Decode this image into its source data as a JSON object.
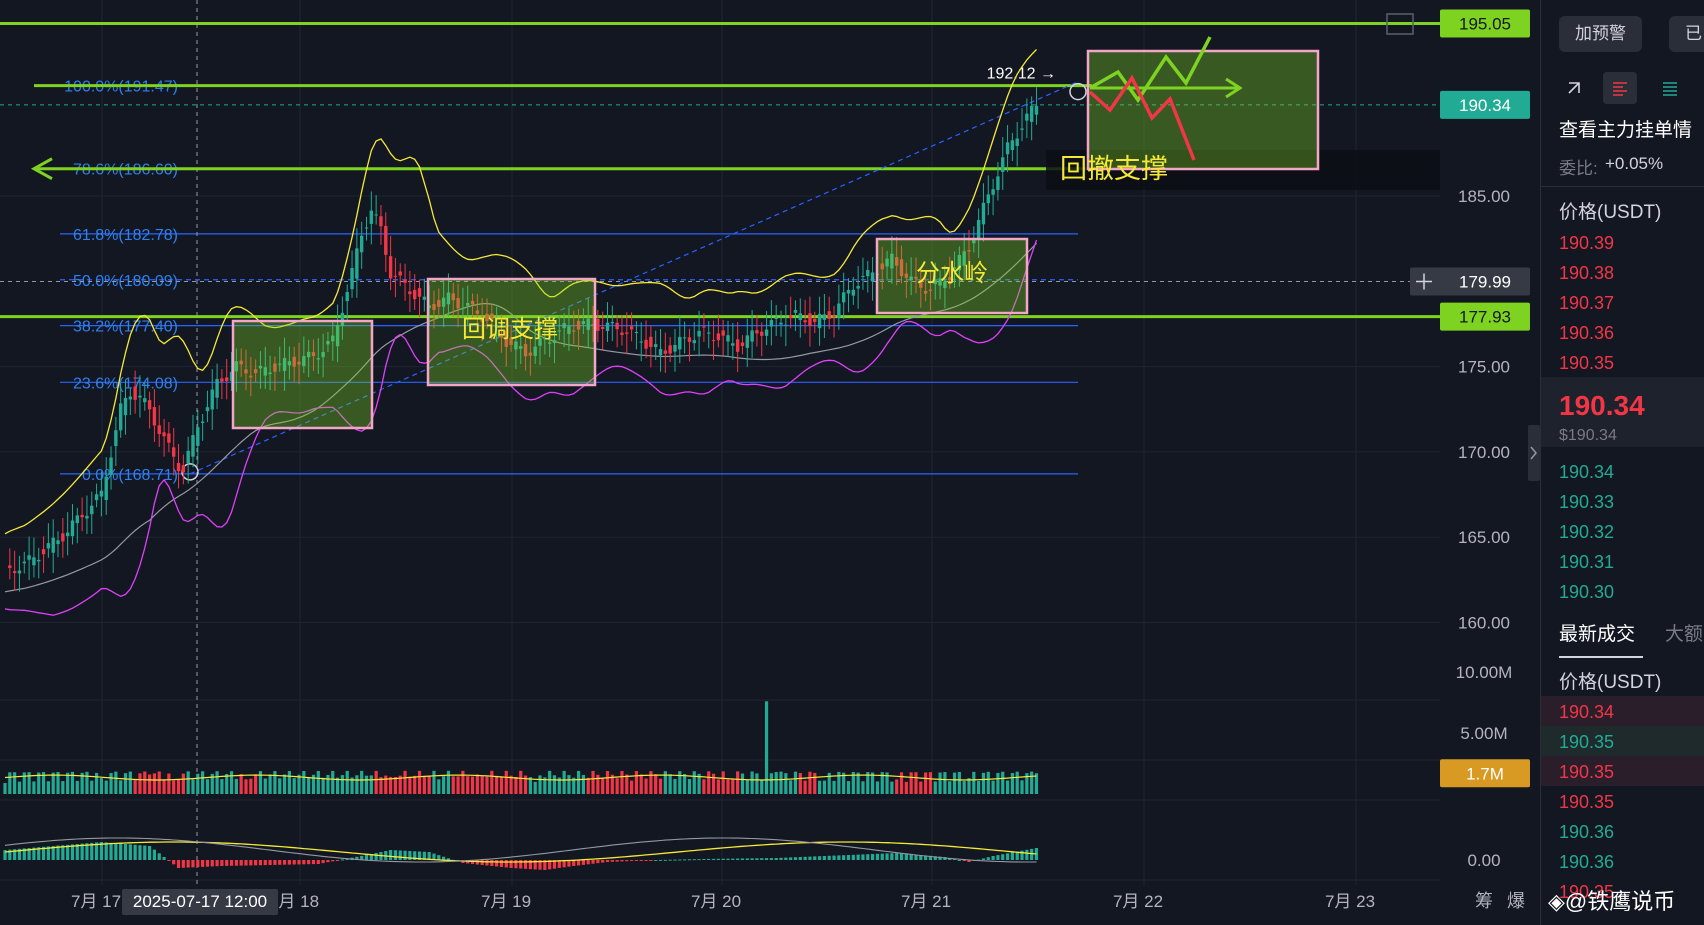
{
  "chart_data": {
    "type": "candlestick",
    "symbol_quote": "USDT",
    "price_axis": {
      "min": 160,
      "max": 195,
      "ticks": [
        "185.00",
        "175.00",
        "170.00",
        "165.00",
        "160.00"
      ],
      "tick_values": [
        185,
        175,
        170,
        165,
        160
      ]
    },
    "x_ticks": [
      "7月 17",
      "7月 18",
      "7月 19",
      "7月 20",
      "7月 21",
      "7月 22",
      "7月 23"
    ],
    "crosshair_time": "2025-07-17 12:00",
    "crosshair_price": "179.99",
    "price_badges": [
      {
        "label": "195.05",
        "value": 195.05,
        "color": "#7ed321",
        "text_color": "#131722"
      },
      {
        "label": "190.34",
        "value": 190.34,
        "color": "#22ab94",
        "text_color": "#ffffff"
      },
      {
        "label": "177.93",
        "value": 177.93,
        "color": "#7ed321",
        "text_color": "#131722"
      }
    ],
    "fib_levels": [
      {
        "label": "100.0%(191.47)",
        "value": 191.47
      },
      {
        "label": "78.6%(186.60)",
        "value": 186.6
      },
      {
        "label": "61.8%(182.78)",
        "value": 182.78
      },
      {
        "label": "50.0%(180.09)",
        "value": 180.09
      },
      {
        "label": "38.2%(177.40)",
        "value": 177.4
      },
      {
        "label": "23.6%(174.08)",
        "value": 174.08
      },
      {
        "label": "0.0%(168.71)",
        "value": 168.71
      }
    ],
    "high_marker": "192.12",
    "annotations": [
      "回调支撑",
      "分水岭",
      "回撤支撑"
    ],
    "volume_panel": {
      "ticks": [
        "10.00M",
        "5.00M"
      ],
      "tick_values": [
        10,
        5
      ],
      "current_label": "1.7M",
      "current_value": 1.7
    },
    "macd_panel": {
      "ticks": [
        "0.00"
      ]
    },
    "close_path": [
      [
        0,
        163.0
      ],
      [
        4,
        163.4
      ],
      [
        8,
        164.2
      ],
      [
        12,
        165.1
      ],
      [
        16,
        166.3
      ],
      [
        20,
        167.5
      ],
      [
        22,
        170.0
      ],
      [
        24,
        172.5
      ],
      [
        26,
        173.5
      ],
      [
        28,
        173.2
      ],
      [
        30,
        172.4
      ],
      [
        32,
        171.3
      ],
      [
        34,
        170.2
      ],
      [
        36,
        169.2
      ],
      [
        37,
        169.0
      ],
      [
        40,
        171.5
      ],
      [
        44,
        174.0
      ],
      [
        48,
        175.0
      ],
      [
        52,
        174.6
      ],
      [
        56,
        175.0
      ],
      [
        60,
        175.3
      ],
      [
        64,
        175.6
      ],
      [
        68,
        176.5
      ],
      [
        70,
        178.5
      ],
      [
        72,
        180.5
      ],
      [
        74,
        182.8
      ],
      [
        76,
        184.2
      ],
      [
        78,
        183.0
      ],
      [
        80,
        180.5
      ],
      [
        84,
        179.5
      ],
      [
        88,
        178.5
      ],
      [
        92,
        179.0
      ],
      [
        96,
        178.5
      ],
      [
        100,
        177.8
      ],
      [
        104,
        176.5
      ],
      [
        108,
        175.8
      ],
      [
        112,
        176.5
      ],
      [
        116,
        177.2
      ],
      [
        120,
        177.5
      ],
      [
        124,
        177.4
      ],
      [
        128,
        177.2
      ],
      [
        132,
        176.6
      ],
      [
        136,
        175.8
      ],
      [
        140,
        176.4
      ],
      [
        144,
        177.0
      ],
      [
        148,
        176.8
      ],
      [
        152,
        176.2
      ],
      [
        156,
        177.0
      ],
      [
        160,
        177.6
      ],
      [
        164,
        178.0
      ],
      [
        168,
        177.6
      ],
      [
        172,
        178.2
      ],
      [
        176,
        179.8
      ],
      [
        180,
        180.5
      ],
      [
        184,
        181.3
      ],
      [
        188,
        180.0
      ],
      [
        192,
        179.5
      ],
      [
        196,
        180.4
      ],
      [
        200,
        182.0
      ],
      [
        204,
        185.0
      ],
      [
        208,
        187.8
      ],
      [
        212,
        189.6
      ],
      [
        214,
        190.34
      ]
    ],
    "volume_bars": [
      [
        0,
        0.9
      ],
      [
        20,
        1.3
      ],
      [
        30,
        1.6
      ],
      [
        35,
        1.1
      ],
      [
        50,
        1.2
      ],
      [
        75,
        1.5
      ],
      [
        80,
        1.4
      ],
      [
        90,
        1.2
      ],
      [
        98,
        1.6
      ],
      [
        110,
        1.0
      ],
      [
        130,
        1.1
      ],
      [
        150,
        1.2
      ],
      [
        158,
        7.6
      ],
      [
        160,
        1.8
      ],
      [
        170,
        1.1
      ],
      [
        185,
        1.2
      ],
      [
        200,
        1.3
      ],
      [
        214,
        1.7
      ]
    ],
    "macd_bars": [
      [
        0,
        1.0
      ],
      [
        10,
        1.4
      ],
      [
        20,
        1.8
      ],
      [
        30,
        1.4
      ],
      [
        36,
        -0.8
      ],
      [
        45,
        -0.6
      ],
      [
        55,
        -0.5
      ],
      [
        65,
        -0.4
      ],
      [
        75,
        0.5
      ],
      [
        80,
        1.0
      ],
      [
        88,
        0.8
      ],
      [
        95,
        -0.3
      ],
      [
        105,
        -0.8
      ],
      [
        112,
        -1.0
      ],
      [
        118,
        -0.6
      ],
      [
        125,
        -0.2
      ],
      [
        135,
        0.0
      ],
      [
        145,
        0.1
      ],
      [
        160,
        0.2
      ],
      [
        175,
        0.5
      ],
      [
        185,
        0.7
      ],
      [
        195,
        0.3
      ],
      [
        200,
        -0.2
      ],
      [
        205,
        0.4
      ],
      [
        214,
        1.2
      ]
    ]
  },
  "sidebar": {
    "buttons": [
      "加预警",
      "已"
    ],
    "orderbook_title": "查看主力挂单情",
    "ratio_label": "委比:",
    "ratio_value": "+0.05%",
    "price_header": "价格(USDT)",
    "asks": [
      "190.39",
      "190.38",
      "190.37",
      "190.36",
      "190.35"
    ],
    "last_price": "190.34",
    "last_price_usd": "$190.34",
    "bids": [
      "190.34",
      "190.33",
      "190.32",
      "190.31",
      "190.30"
    ],
    "trades_tab": "最新成交",
    "big_tab": "大额",
    "trades_header": "价格(USDT)",
    "trades": [
      {
        "price": "190.34",
        "side": "sell"
      },
      {
        "price": "190.35",
        "side": "buy"
      },
      {
        "price": "190.35",
        "side": "sell"
      },
      {
        "price": "190.35",
        "side": "sell"
      },
      {
        "price": "190.36",
        "side": "buy"
      },
      {
        "price": "190.36",
        "side": "buy"
      },
      {
        "price": "190.35",
        "side": "sell"
      }
    ]
  },
  "bottom_labels": {
    "chips": "筹",
    "burst": "爆"
  },
  "watermark": "@铁鹰说币",
  "colors": {
    "up": "#22ab94",
    "down": "#f23645",
    "fib": "#2962ff",
    "green_line": "#7ed321",
    "ma_yellow": "#f5e936",
    "band_pink": "#e040fb",
    "gray_ma": "#9598a1"
  }
}
